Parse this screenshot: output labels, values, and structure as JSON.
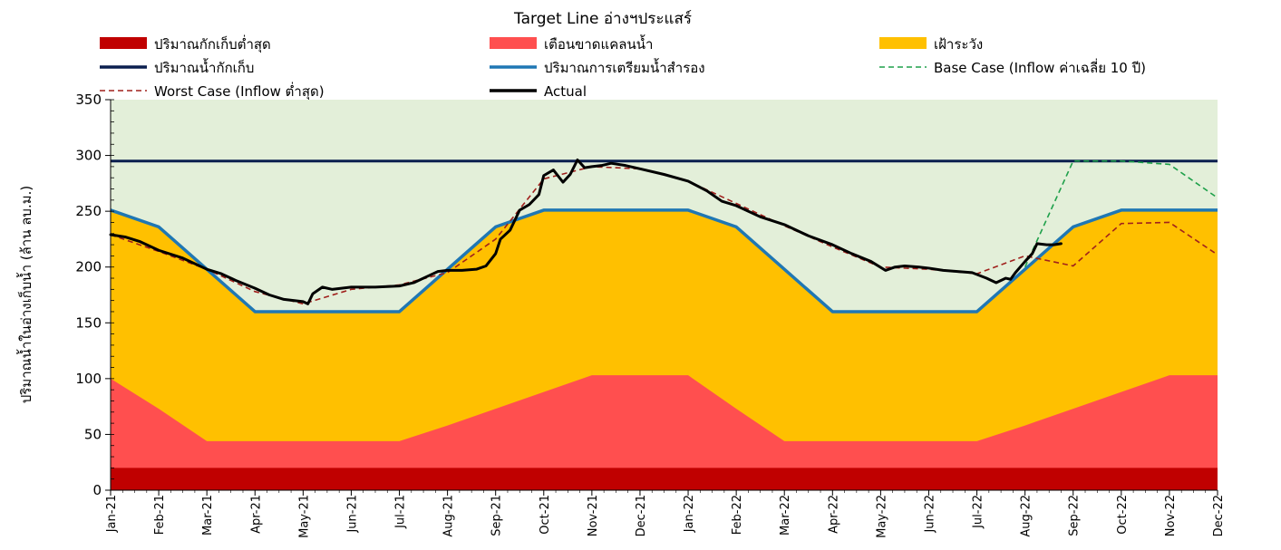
{
  "chart_data": {
    "type": "area",
    "title": "Target Line อ่างฯประแสร์",
    "ylabel": "ปริมาณน้ำในอ่างเก็บน้ำ (ล้าน ลบ.ม.)",
    "xlabel": "",
    "ylim": [
      0,
      350
    ],
    "y_ticks": [
      0,
      50,
      100,
      150,
      200,
      250,
      300,
      350
    ],
    "x_tick_labels": [
      "Jan-21",
      "Feb-21",
      "Mar-21",
      "Apr-21",
      "May-21",
      "Jun-21",
      "Jul-21",
      "Aug-21",
      "Sep-21",
      "Oct-21",
      "Nov-21",
      "Dec-21",
      "Jan-22",
      "Feb-22",
      "Mar-22",
      "Apr-22",
      "May-22",
      "Jun-22",
      "Jul-22",
      "Aug-22",
      "Sep-22",
      "Oct-22",
      "Nov-22",
      "Dec-22"
    ],
    "legend_position": "top",
    "colors": {
      "background": "#e3efd9",
      "min_storage": "#c00000",
      "warning": "#ff4f4f",
      "caution": "#ffc000",
      "capacity_line": "#0b1f4f",
      "reserve_line": "#1f77b4",
      "base_case": "#1ea04a",
      "worst_case": "#a0201c",
      "actual": "#000000"
    },
    "series": [
      {
        "name": "ปริมาณกักเก็บต่ำสุด",
        "kind": "band",
        "color_key": "min_storage",
        "values": [
          20,
          20,
          20,
          20,
          20,
          20,
          20,
          20,
          20,
          20,
          20,
          20,
          20,
          20,
          20,
          20,
          20,
          20,
          20,
          20,
          20,
          20,
          20,
          20
        ]
      },
      {
        "name": "เตือนขาดแคลนน้ำ",
        "kind": "band",
        "color_key": "warning",
        "values": [
          100,
          73,
          44,
          44,
          44,
          44,
          44,
          58,
          73,
          88,
          103,
          103,
          103,
          73,
          44,
          44,
          44,
          44,
          44,
          58,
          73,
          88,
          103,
          103
        ]
      },
      {
        "name": "เฝ้าระวัง",
        "kind": "band",
        "color_key": "caution",
        "values": [
          251,
          236,
          198,
          160,
          160,
          160,
          160,
          198,
          236,
          251,
          251,
          251,
          251,
          236,
          198,
          160,
          160,
          160,
          160,
          198,
          236,
          251,
          251,
          251
        ]
      },
      {
        "name": "ปริมาณน้ำกักเก็บ",
        "kind": "line",
        "color_key": "capacity_line",
        "values": [
          295,
          295,
          295,
          295,
          295,
          295,
          295,
          295,
          295,
          295,
          295,
          295,
          295,
          295,
          295,
          295,
          295,
          295,
          295,
          295,
          295,
          295,
          295,
          295
        ]
      },
      {
        "name": "ปริมาณการเตรียมน้ำสำรอง",
        "kind": "line",
        "color_key": "reserve_line",
        "values": [
          251,
          236,
          198,
          160,
          160,
          160,
          160,
          198,
          236,
          251,
          251,
          251,
          251,
          236,
          198,
          160,
          160,
          160,
          160,
          198,
          236,
          251,
          251,
          251
        ]
      },
      {
        "name": "Base Case (Inflow ค่าเฉลี่ย 10 ปี)",
        "kind": "dashed",
        "color_key": "base_case",
        "points": [
          [
            19,
            200
          ],
          [
            20,
            295
          ],
          [
            21,
            295
          ],
          [
            22,
            292
          ],
          [
            23,
            262
          ]
        ]
      },
      {
        "name": "Worst Case (Inflow ต่ำสุด)",
        "kind": "dashed",
        "color_key": "worst_case",
        "points": [
          [
            0,
            229
          ],
          [
            1,
            214
          ],
          [
            2,
            198
          ],
          [
            3,
            178
          ],
          [
            4,
            167
          ],
          [
            5,
            180
          ],
          [
            6,
            184
          ],
          [
            7,
            195
          ],
          [
            8,
            225
          ],
          [
            9,
            279
          ],
          [
            10,
            290
          ],
          [
            11,
            288
          ],
          [
            12,
            277
          ],
          [
            13,
            257
          ],
          [
            14,
            237
          ],
          [
            15,
            218
          ],
          [
            16,
            200
          ],
          [
            17,
            198
          ],
          [
            18,
            194
          ],
          [
            19,
            210
          ],
          [
            20,
            201
          ],
          [
            21,
            239
          ],
          [
            22,
            240
          ],
          [
            23,
            211
          ]
        ]
      },
      {
        "name": "Actual",
        "kind": "thick",
        "color_key": "actual",
        "points": [
          [
            0,
            229
          ],
          [
            0.3,
            227
          ],
          [
            0.6,
            223
          ],
          [
            1,
            215
          ],
          [
            1.5,
            208
          ],
          [
            2,
            198
          ],
          [
            2.3,
            194
          ],
          [
            2.6,
            188
          ],
          [
            3,
            181
          ],
          [
            3.3,
            175
          ],
          [
            3.6,
            171
          ],
          [
            4,
            169
          ],
          [
            4.1,
            167
          ],
          [
            4.2,
            176
          ],
          [
            4.4,
            182
          ],
          [
            4.6,
            180
          ],
          [
            4.8,
            181
          ],
          [
            5,
            182
          ],
          [
            5.5,
            182
          ],
          [
            6,
            183
          ],
          [
            6.3,
            186
          ],
          [
            6.6,
            192
          ],
          [
            6.8,
            196
          ],
          [
            7,
            197
          ],
          [
            7.3,
            197
          ],
          [
            7.6,
            198
          ],
          [
            7.8,
            201
          ],
          [
            8,
            212
          ],
          [
            8.1,
            225
          ],
          [
            8.3,
            233
          ],
          [
            8.5,
            251
          ],
          [
            8.7,
            256
          ],
          [
            8.9,
            265
          ],
          [
            9,
            282
          ],
          [
            9.2,
            287
          ],
          [
            9.4,
            276
          ],
          [
            9.55,
            283
          ],
          [
            9.7,
            296
          ],
          [
            9.85,
            289
          ],
          [
            10,
            290
          ],
          [
            10.2,
            291
          ],
          [
            10.4,
            293
          ],
          [
            10.7,
            291
          ],
          [
            11,
            288
          ],
          [
            11.5,
            283
          ],
          [
            12,
            277
          ],
          [
            12.4,
            268
          ],
          [
            12.7,
            259
          ],
          [
            13,
            255
          ],
          [
            13.5,
            245
          ],
          [
            14,
            238
          ],
          [
            14.5,
            228
          ],
          [
            15,
            220
          ],
          [
            15.4,
            212
          ],
          [
            15.8,
            205
          ],
          [
            16.1,
            197
          ],
          [
            16.3,
            200
          ],
          [
            16.5,
            201
          ],
          [
            16.8,
            200
          ],
          [
            17,
            199
          ],
          [
            17.3,
            197
          ],
          [
            17.6,
            196
          ],
          [
            17.9,
            195
          ],
          [
            18.2,
            190
          ],
          [
            18.4,
            186
          ],
          [
            18.6,
            190
          ],
          [
            18.7,
            189
          ],
          [
            18.8,
            195
          ],
          [
            19,
            205
          ],
          [
            19.15,
            212
          ],
          [
            19.25,
            221
          ],
          [
            19.45,
            220
          ],
          [
            19.6,
            220
          ],
          [
            19.75,
            221
          ]
        ]
      }
    ]
  }
}
